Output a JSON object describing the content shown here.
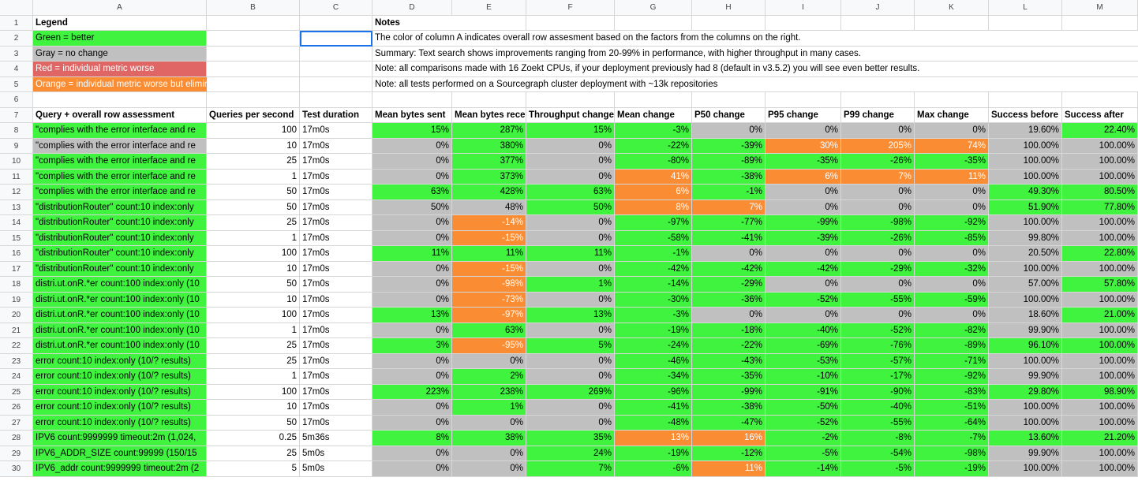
{
  "columns": [
    "A",
    "B",
    "C",
    "D",
    "E",
    "F",
    "G",
    "H",
    "I",
    "J",
    "K",
    "L",
    "M"
  ],
  "legend": {
    "title": "Legend",
    "items": [
      {
        "label": "Green = better",
        "cls": "g"
      },
      {
        "label": "Gray = no change",
        "cls": "y"
      },
      {
        "label": "Red = individual metric worse",
        "cls": "r"
      },
      {
        "label": "Orange = individual metric worse but eliminated as concern (see column A note)",
        "cls": "o"
      }
    ]
  },
  "notes": {
    "title": "Notes",
    "lines": [
      "The color of column A indicates overall row assesment based on the factors from the columns on the right.",
      "Summary: Text search shows improvements ranging from 20-99% in performance, with higher throughput in many cases.",
      "Note: all comparisons made with 16 Zoekt CPUs, if your deployment previously had 8 (default in v3.5.2) you will see even better results.",
      "Note: all tests performed on a Sourcegraph cluster deployment with ~13k repositories"
    ]
  },
  "headers": [
    "Query + overall row assessment",
    "Queries per second",
    "Test duration",
    "Mean bytes sent",
    "Mean bytes received",
    "Throughput change",
    "Mean change",
    "P50 change",
    "P95 change",
    "P99 change",
    "Max change",
    "Success before",
    "Success after"
  ],
  "rows": [
    {
      "n": "8",
      "v": [
        "\"complies with the error interface and re",
        "100",
        "17m0s",
        "15%",
        "287%",
        "15%",
        "-3%",
        "0%",
        "0%",
        "0%",
        "0%",
        "19.60%",
        "22.40%"
      ],
      "c": [
        "g",
        "",
        "",
        "g",
        "g",
        "g",
        "g",
        "y",
        "y",
        "y",
        "y",
        "y",
        "g"
      ]
    },
    {
      "n": "9",
      "v": [
        "\"complies with the error interface and re",
        "10",
        "17m0s",
        "0%",
        "380%",
        "0%",
        "-22%",
        "-39%",
        "30%",
        "205%",
        "74%",
        "100.00%",
        "100.00%"
      ],
      "c": [
        "y",
        "",
        "",
        "y",
        "g",
        "y",
        "g",
        "g",
        "o",
        "o",
        "o",
        "y",
        "y"
      ]
    },
    {
      "n": "10",
      "v": [
        "\"complies with the error interface and re",
        "25",
        "17m0s",
        "0%",
        "377%",
        "0%",
        "-80%",
        "-89%",
        "-35%",
        "-26%",
        "-35%",
        "100.00%",
        "100.00%"
      ],
      "c": [
        "g",
        "",
        "",
        "y",
        "g",
        "y",
        "g",
        "g",
        "g",
        "g",
        "g",
        "y",
        "y"
      ]
    },
    {
      "n": "11",
      "v": [
        "\"complies with the error interface and re",
        "1",
        "17m0s",
        "0%",
        "373%",
        "0%",
        "41%",
        "-38%",
        "6%",
        "7%",
        "11%",
        "100.00%",
        "100.00%"
      ],
      "c": [
        "g",
        "",
        "",
        "y",
        "g",
        "y",
        "o",
        "g",
        "o",
        "o",
        "o",
        "y",
        "y"
      ]
    },
    {
      "n": "12",
      "v": [
        "\"complies with the error interface and re",
        "50",
        "17m0s",
        "63%",
        "428%",
        "63%",
        "6%",
        "-1%",
        "0%",
        "0%",
        "0%",
        "49.30%",
        "80.50%"
      ],
      "c": [
        "g",
        "",
        "",
        "g",
        "g",
        "g",
        "o",
        "g",
        "y",
        "y",
        "y",
        "g",
        "g"
      ]
    },
    {
      "n": "13",
      "v": [
        "\"distributionRouter\" count:10 index:only",
        "50",
        "17m0s",
        "50%",
        "48%",
        "50%",
        "8%",
        "7%",
        "0%",
        "0%",
        "0%",
        "51.90%",
        "77.80%"
      ],
      "c": [
        "g",
        "",
        "",
        "y",
        "y",
        "g",
        "o",
        "o",
        "y",
        "y",
        "y",
        "g",
        "g"
      ]
    },
    {
      "n": "14",
      "v": [
        "\"distributionRouter\" count:10 index:only",
        "25",
        "17m0s",
        "0%",
        "-14%",
        "0%",
        "-97%",
        "-77%",
        "-99%",
        "-98%",
        "-92%",
        "100.00%",
        "100.00%"
      ],
      "c": [
        "g",
        "",
        "",
        "y",
        "o",
        "y",
        "g",
        "g",
        "g",
        "g",
        "g",
        "y",
        "y"
      ]
    },
    {
      "n": "15",
      "v": [
        "\"distributionRouter\" count:10 index:only",
        "1",
        "17m0s",
        "0%",
        "-15%",
        "0%",
        "-58%",
        "-41%",
        "-39%",
        "-26%",
        "-85%",
        "99.80%",
        "100.00%"
      ],
      "c": [
        "g",
        "",
        "",
        "y",
        "o",
        "y",
        "g",
        "g",
        "g",
        "g",
        "g",
        "y",
        "y"
      ]
    },
    {
      "n": "16",
      "v": [
        "\"distributionRouter\" count:10 index:only",
        "100",
        "17m0s",
        "11%",
        "11%",
        "11%",
        "-1%",
        "0%",
        "0%",
        "0%",
        "0%",
        "20.50%",
        "22.80%"
      ],
      "c": [
        "g",
        "",
        "",
        "g",
        "g",
        "g",
        "g",
        "y",
        "y",
        "y",
        "y",
        "y",
        "g"
      ]
    },
    {
      "n": "17",
      "v": [
        "\"distributionRouter\" count:10 index:only",
        "10",
        "17m0s",
        "0%",
        "-15%",
        "0%",
        "-42%",
        "-42%",
        "-42%",
        "-29%",
        "-32%",
        "100.00%",
        "100.00%"
      ],
      "c": [
        "g",
        "",
        "",
        "y",
        "o",
        "y",
        "g",
        "g",
        "g",
        "g",
        "g",
        "y",
        "y"
      ]
    },
    {
      "n": "18",
      "v": [
        "distri.ut.onR.*er count:100 index:only (10",
        "50",
        "17m0s",
        "0%",
        "-98%",
        "1%",
        "-14%",
        "-29%",
        "0%",
        "0%",
        "0%",
        "57.00%",
        "57.80%"
      ],
      "c": [
        "g",
        "",
        "",
        "y",
        "o",
        "g",
        "g",
        "g",
        "y",
        "y",
        "y",
        "y",
        "g"
      ]
    },
    {
      "n": "19",
      "v": [
        "distri.ut.onR.*er count:100 index:only (10",
        "10",
        "17m0s",
        "0%",
        "-73%",
        "0%",
        "-30%",
        "-36%",
        "-52%",
        "-55%",
        "-59%",
        "100.00%",
        "100.00%"
      ],
      "c": [
        "g",
        "",
        "",
        "y",
        "o",
        "y",
        "g",
        "g",
        "g",
        "g",
        "g",
        "y",
        "y"
      ]
    },
    {
      "n": "20",
      "v": [
        "distri.ut.onR.*er count:100 index:only (10",
        "100",
        "17m0s",
        "13%",
        "-97%",
        "13%",
        "-3%",
        "0%",
        "0%",
        "0%",
        "0%",
        "18.60%",
        "21.00%"
      ],
      "c": [
        "g",
        "",
        "",
        "g",
        "o",
        "g",
        "g",
        "y",
        "y",
        "y",
        "y",
        "y",
        "g"
      ]
    },
    {
      "n": "21",
      "v": [
        "distri.ut.onR.*er count:100 index:only (10",
        "1",
        "17m0s",
        "0%",
        "63%",
        "0%",
        "-19%",
        "-18%",
        "-40%",
        "-52%",
        "-82%",
        "99.90%",
        "100.00%"
      ],
      "c": [
        "g",
        "",
        "",
        "y",
        "g",
        "y",
        "g",
        "g",
        "g",
        "g",
        "g",
        "y",
        "y"
      ]
    },
    {
      "n": "22",
      "v": [
        "distri.ut.onR.*er count:100 index:only (10",
        "25",
        "17m0s",
        "3%",
        "-95%",
        "5%",
        "-24%",
        "-22%",
        "-69%",
        "-76%",
        "-89%",
        "96.10%",
        "100.00%"
      ],
      "c": [
        "g",
        "",
        "",
        "g",
        "o",
        "g",
        "g",
        "g",
        "g",
        "g",
        "g",
        "g",
        "g"
      ]
    },
    {
      "n": "23",
      "v": [
        "error count:10 index:only (10/? results)",
        "25",
        "17m0s",
        "0%",
        "0%",
        "0%",
        "-46%",
        "-43%",
        "-53%",
        "-57%",
        "-71%",
        "100.00%",
        "100.00%"
      ],
      "c": [
        "g",
        "",
        "",
        "y",
        "y",
        "y",
        "g",
        "g",
        "g",
        "g",
        "g",
        "y",
        "y"
      ]
    },
    {
      "n": "24",
      "v": [
        "error count:10 index:only (10/? results)",
        "1",
        "17m0s",
        "0%",
        "2%",
        "0%",
        "-34%",
        "-35%",
        "-10%",
        "-17%",
        "-92%",
        "99.90%",
        "100.00%"
      ],
      "c": [
        "g",
        "",
        "",
        "y",
        "g",
        "y",
        "g",
        "g",
        "g",
        "g",
        "g",
        "y",
        "y"
      ]
    },
    {
      "n": "25",
      "v": [
        "error count:10 index:only (10/? results)",
        "100",
        "17m0s",
        "223%",
        "238%",
        "269%",
        "-96%",
        "-99%",
        "-91%",
        "-90%",
        "-83%",
        "29.80%",
        "98.90%"
      ],
      "c": [
        "g",
        "",
        "",
        "g",
        "g",
        "g",
        "g",
        "g",
        "g",
        "g",
        "g",
        "g",
        "g"
      ]
    },
    {
      "n": "26",
      "v": [
        "error count:10 index:only (10/? results)",
        "10",
        "17m0s",
        "0%",
        "1%",
        "0%",
        "-41%",
        "-38%",
        "-50%",
        "-40%",
        "-51%",
        "100.00%",
        "100.00%"
      ],
      "c": [
        "g",
        "",
        "",
        "y",
        "g",
        "y",
        "g",
        "g",
        "g",
        "g",
        "g",
        "y",
        "y"
      ]
    },
    {
      "n": "27",
      "v": [
        "error count:10 index:only (10/? results)",
        "50",
        "17m0s",
        "0%",
        "0%",
        "0%",
        "-48%",
        "-47%",
        "-52%",
        "-55%",
        "-64%",
        "100.00%",
        "100.00%"
      ],
      "c": [
        "g",
        "",
        "",
        "y",
        "y",
        "y",
        "g",
        "g",
        "g",
        "g",
        "g",
        "y",
        "y"
      ]
    },
    {
      "n": "28",
      "v": [
        "IPV6 count:9999999 timeout:2m (1,024,",
        "0.25",
        "5m36s",
        "8%",
        "38%",
        "35%",
        "13%",
        "16%",
        "-2%",
        "-8%",
        "-7%",
        "13.60%",
        "21.20%"
      ],
      "c": [
        "g",
        "",
        "",
        "g",
        "g",
        "g",
        "o",
        "o",
        "g",
        "g",
        "g",
        "g",
        "g"
      ]
    },
    {
      "n": "29",
      "v": [
        "IPV6_ADDR_SIZE count:99999 (150/15",
        "25",
        "5m0s",
        "0%",
        "0%",
        "24%",
        "-19%",
        "-12%",
        "-5%",
        "-54%",
        "-98%",
        "99.90%",
        "100.00%"
      ],
      "c": [
        "g",
        "",
        "",
        "y",
        "y",
        "g",
        "g",
        "g",
        "g",
        "g",
        "g",
        "y",
        "y"
      ]
    },
    {
      "n": "30",
      "v": [
        "IPV6_addr count:9999999 timeout:2m (2",
        "5",
        "5m0s",
        "0%",
        "0%",
        "7%",
        "-6%",
        "11%",
        "-14%",
        "-5%",
        "-19%",
        "100.00%",
        "100.00%"
      ],
      "c": [
        "g",
        "",
        "",
        "y",
        "y",
        "g",
        "g",
        "o",
        "g",
        "g",
        "g",
        "y",
        "y"
      ]
    }
  ]
}
